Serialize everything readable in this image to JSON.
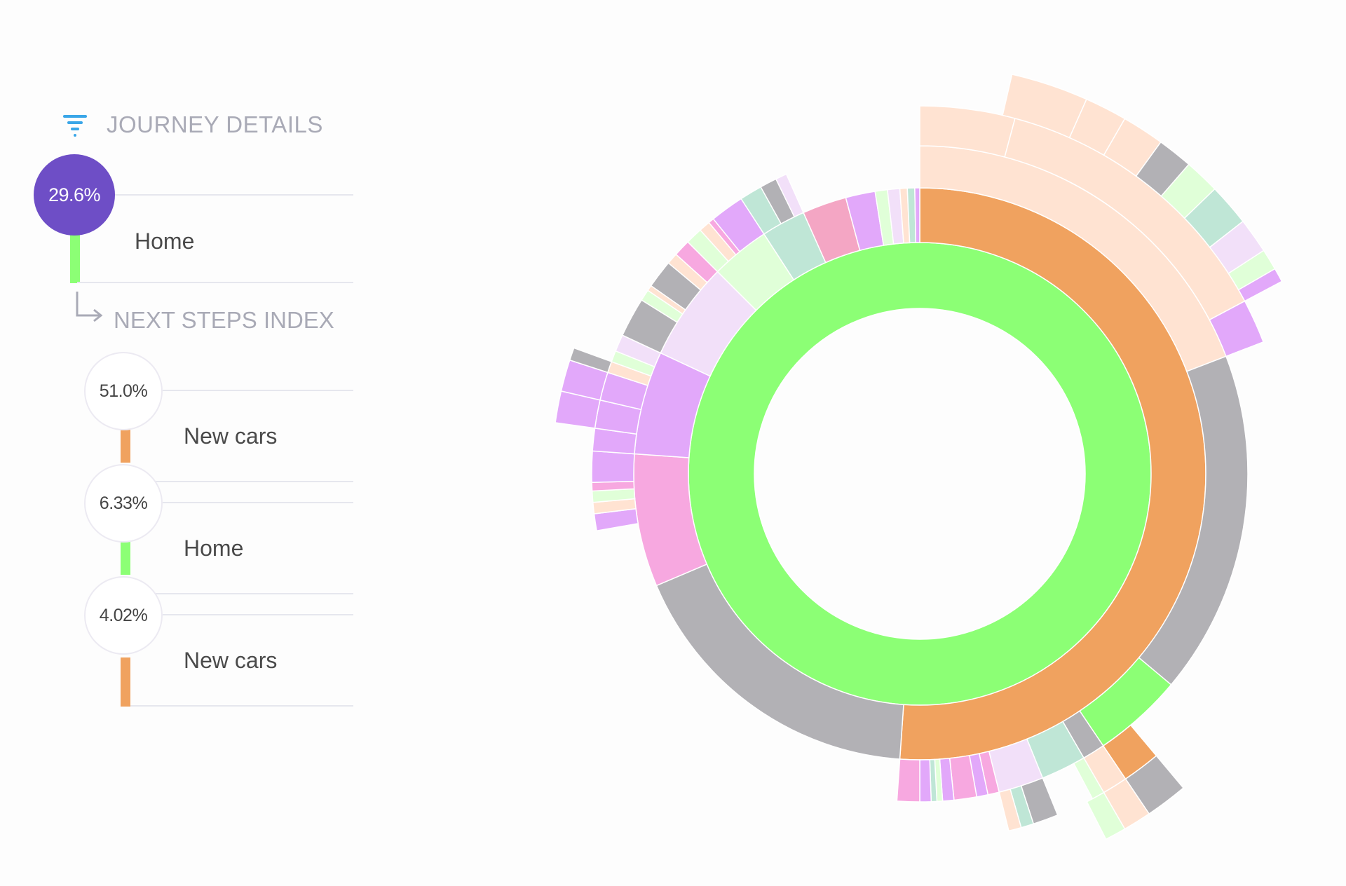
{
  "panel": {
    "header_title": "JOURNEY DETAILS",
    "current": {
      "pct": "29.6%",
      "label": "Home",
      "color": "#8cff75"
    },
    "next_steps_title": "NEXT STEPS INDEX",
    "steps": [
      {
        "pct": "51.0%",
        "label": "New cars",
        "color": "#f0a25f"
      },
      {
        "pct": "6.33%",
        "label": "Home",
        "color": "#8cff75"
      },
      {
        "pct": "4.02%",
        "label": "New cars",
        "color": "#f0a25f"
      }
    ],
    "accent": "#6e4ec6",
    "filter_icon_color": "#3aa6e8"
  },
  "chart_data": {
    "type": "sunburst",
    "title": "",
    "rings": [
      {
        "level": 1,
        "segments": [
          {
            "start_deg": 0,
            "end_deg": 360,
            "color": "#8cff75"
          }
        ]
      },
      {
        "level": 2,
        "segments": [
          {
            "start_deg": 0,
            "end_deg": 184,
            "color": "#f0a25f"
          },
          {
            "start_deg": 184,
            "end_deg": 247,
            "color": "#b2b1b5"
          },
          {
            "start_deg": 247,
            "end_deg": 274,
            "color": "#f7a8e0"
          },
          {
            "start_deg": 274,
            "end_deg": 295,
            "color": "#e2a8fa"
          },
          {
            "start_deg": 295,
            "end_deg": 315,
            "color": "#f2e0f9"
          },
          {
            "start_deg": 315,
            "end_deg": 327,
            "color": "#e0ffd8"
          },
          {
            "start_deg": 327,
            "end_deg": 336,
            "color": "#bfe6d6"
          },
          {
            "start_deg": 336,
            "end_deg": 345,
            "color": "#f4a6c4"
          },
          {
            "start_deg": 345,
            "end_deg": 351,
            "color": "#e2a8fa"
          },
          {
            "start_deg": 351,
            "end_deg": 353.5,
            "color": "#e0ffd8"
          },
          {
            "start_deg": 353.5,
            "end_deg": 356,
            "color": "#f2e0f9"
          },
          {
            "start_deg": 356,
            "end_deg": 357.5,
            "color": "#ffe3d2"
          },
          {
            "start_deg": 357.5,
            "end_deg": 359,
            "color": "#bfe6d6"
          },
          {
            "start_deg": 359,
            "end_deg": 360,
            "color": "#e2a8fa"
          }
        ]
      },
      {
        "level": 3,
        "segments": [
          {
            "start_deg": 0,
            "end_deg": 69,
            "color": "#ffe3d2"
          },
          {
            "start_deg": 69,
            "end_deg": 130,
            "color": "#b2b1b5"
          },
          {
            "start_deg": 130,
            "end_deg": 146,
            "color": "#8cff75"
          },
          {
            "start_deg": 146,
            "end_deg": 150,
            "color": "#b2b1b5"
          },
          {
            "start_deg": 150,
            "end_deg": 158,
            "color": "#bfe6d6"
          },
          {
            "start_deg": 158,
            "end_deg": 166,
            "color": "#f2e0f9"
          },
          {
            "start_deg": 166,
            "end_deg": 168,
            "color": "#f7a8e0"
          },
          {
            "start_deg": 168,
            "end_deg": 170,
            "color": "#e2a8fa"
          },
          {
            "start_deg": 170,
            "end_deg": 174,
            "color": "#f7a8e0"
          },
          {
            "start_deg": 174,
            "end_deg": 176,
            "color": "#e2a8fa"
          },
          {
            "start_deg": 176,
            "end_deg": 177,
            "color": "#e0ffd8"
          },
          {
            "start_deg": 177,
            "end_deg": 178,
            "color": "#bfe6d6"
          },
          {
            "start_deg": 178,
            "end_deg": 180,
            "color": "#e2a8fa"
          },
          {
            "start_deg": 180,
            "end_deg": 184,
            "color": "#f7a8e0"
          },
          {
            "start_deg": 260,
            "end_deg": 263,
            "color": "#e2a8fa"
          },
          {
            "start_deg": 263,
            "end_deg": 265,
            "color": "#ffe3d2"
          },
          {
            "start_deg": 265,
            "end_deg": 267,
            "color": "#e0ffd8"
          },
          {
            "start_deg": 267,
            "end_deg": 268.5,
            "color": "#f7a8e0"
          },
          {
            "start_deg": 268.5,
            "end_deg": 274,
            "color": "#e2a8fa"
          },
          {
            "start_deg": 274,
            "end_deg": 278,
            "color": "#e2a8fa"
          },
          {
            "start_deg": 278,
            "end_deg": 283,
            "color": "#e2a8fa"
          },
          {
            "start_deg": 283,
            "end_deg": 288,
            "color": "#e2a8fa"
          },
          {
            "start_deg": 288,
            "end_deg": 290,
            "color": "#ffe3d2"
          },
          {
            "start_deg": 290,
            "end_deg": 292,
            "color": "#e0ffd8"
          },
          {
            "start_deg": 292,
            "end_deg": 295,
            "color": "#f2e0f9"
          },
          {
            "start_deg": 295,
            "end_deg": 302,
            "color": "#b2b1b5"
          },
          {
            "start_deg": 302,
            "end_deg": 304,
            "color": "#e0ffd8"
          },
          {
            "start_deg": 304,
            "end_deg": 305,
            "color": "#ffe3d2"
          },
          {
            "start_deg": 305,
            "end_deg": 310,
            "color": "#b2b1b5"
          },
          {
            "start_deg": 310,
            "end_deg": 312,
            "color": "#ffe3d2"
          },
          {
            "start_deg": 312,
            "end_deg": 315,
            "color": "#f7a8e0"
          },
          {
            "start_deg": 315,
            "end_deg": 318,
            "color": "#e0ffd8"
          },
          {
            "start_deg": 318,
            "end_deg": 320,
            "color": "#ffe3d2"
          },
          {
            "start_deg": 320,
            "end_deg": 321,
            "color": "#f7a8e0"
          },
          {
            "start_deg": 321,
            "end_deg": 327,
            "color": "#e2a8fa"
          },
          {
            "start_deg": 327,
            "end_deg": 331,
            "color": "#bfe6d6"
          },
          {
            "start_deg": 331,
            "end_deg": 334,
            "color": "#b2b1b5"
          },
          {
            "start_deg": 334,
            "end_deg": 336,
            "color": "#f2e0f9"
          }
        ]
      },
      {
        "level": 4,
        "segments": [
          {
            "start_deg": 0,
            "end_deg": 15,
            "color": "#ffe3d2"
          },
          {
            "start_deg": 15,
            "end_deg": 62,
            "color": "#ffe3d2"
          },
          {
            "start_deg": 62,
            "end_deg": 69,
            "color": "#e2a8fa"
          },
          {
            "start_deg": 140,
            "end_deg": 146,
            "color": "#f0a25f"
          },
          {
            "start_deg": 146,
            "end_deg": 150,
            "color": "#ffe3d2"
          },
          {
            "start_deg": 150,
            "end_deg": 152,
            "color": "#e0ffd8"
          },
          {
            "start_deg": 158,
            "end_deg": 162,
            "color": "#b2b1b5"
          },
          {
            "start_deg": 162,
            "end_deg": 164,
            "color": "#bfe6d6"
          },
          {
            "start_deg": 164,
            "end_deg": 166,
            "color": "#ffe3d2"
          },
          {
            "start_deg": 278,
            "end_deg": 283,
            "color": "#e2a8fa"
          },
          {
            "start_deg": 283,
            "end_deg": 288,
            "color": "#e2a8fa"
          },
          {
            "start_deg": 288,
            "end_deg": 290,
            "color": "#b2b1b5"
          }
        ]
      }
    ],
    "outer_spikes": [
      {
        "start_deg": 13,
        "end_deg": 24,
        "color": "#ffe3d2"
      },
      {
        "start_deg": 24,
        "end_deg": 30,
        "color": "#ffe3d2"
      },
      {
        "start_deg": 30,
        "end_deg": 36,
        "color": "#ffe3d2"
      },
      {
        "start_deg": 36,
        "end_deg": 41,
        "color": "#b2b1b5"
      },
      {
        "start_deg": 41,
        "end_deg": 46,
        "color": "#e0ffd8"
      },
      {
        "start_deg": 46,
        "end_deg": 52,
        "color": "#bfe6d6"
      },
      {
        "start_deg": 52,
        "end_deg": 57,
        "color": "#f2e0f9"
      },
      {
        "start_deg": 57,
        "end_deg": 60,
        "color": "#e0ffd8"
      },
      {
        "start_deg": 60,
        "end_deg": 62,
        "color": "#e2a8fa"
      },
      {
        "start_deg": 140,
        "end_deg": 146,
        "color": "#b2b1b5"
      },
      {
        "start_deg": 146,
        "end_deg": 150,
        "color": "#ffe3d2"
      },
      {
        "start_deg": 150,
        "end_deg": 153,
        "color": "#e0ffd8"
      }
    ]
  }
}
